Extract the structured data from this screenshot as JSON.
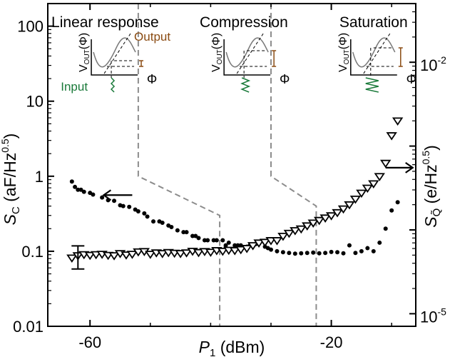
{
  "chart_data": {
    "type": "scatter",
    "xlabel": "P",
    "xlabel_sub": "1",
    "xlabel_unit": "(dBm)",
    "ylabel_left": "S",
    "ylabel_left_sub": "C",
    "ylabel_left_unit": "(aF/Hz",
    "ylabel_left_exp": "0.5",
    "ylabel_right": "S",
    "ylabel_right_sub": "Q̃",
    "ylabel_right_unit": "(e/Hz",
    "ylabel_right_exp": "0.5",
    "xlim": [
      -67,
      -6
    ],
    "ylim_left": [
      0.01,
      200
    ],
    "left_scale": "log",
    "ylim_right_exp": [
      -5.15,
      -1.3
    ],
    "right_scale": "log",
    "x_ticks": [
      -60,
      -20
    ],
    "x_minor_ticks": [
      -50,
      -40,
      -30,
      -10
    ],
    "y_left_ticks": [
      {
        "value": 100,
        "label": "100"
      },
      {
        "value": 10,
        "label": "10"
      },
      {
        "value": 1,
        "label": "1"
      },
      {
        "value": 0.1,
        "label": "0.1"
      },
      {
        "value": 0.01,
        "label": "0.01"
      }
    ],
    "y_right_ticks": [
      {
        "exp": -2,
        "base": "10",
        "sup": "-2"
      },
      {
        "exp": -5,
        "base": "10",
        "sup": "-5"
      }
    ],
    "region_labels": [
      "Linear response",
      "Compression",
      "Saturation"
    ],
    "inset_labels": {
      "output": "Output",
      "input": "Input",
      "axis_y": "V",
      "axis_y_sub": "OUT",
      "axis_y_arg": "(Φ)",
      "axis_x": "Φ"
    },
    "boundary_1": [
      [
        -52,
        200
      ],
      [
        -52,
        1.0
      ],
      [
        -38.5,
        0.3
      ],
      [
        -38.5,
        0.01
      ]
    ],
    "boundary_2": [
      [
        -30,
        200
      ],
      [
        -30,
        1.0
      ],
      [
        -22.5,
        0.4
      ],
      [
        -22.5,
        0.01
      ]
    ],
    "series": [
      {
        "marker": "dot",
        "axis": "left",
        "points": [
          [
            -63,
            0.85
          ],
          [
            -62.5,
            0.72
          ],
          [
            -62,
            0.66
          ],
          [
            -61.5,
            0.66
          ],
          [
            -61,
            0.62
          ],
          [
            -60,
            0.6
          ],
          [
            -59.5,
            0.57
          ],
          [
            -58,
            0.52
          ],
          [
            -57,
            0.48
          ],
          [
            -56,
            0.47
          ],
          [
            -55,
            0.41
          ],
          [
            -54.5,
            0.4
          ],
          [
            -53.5,
            0.39
          ],
          [
            -52.5,
            0.36
          ],
          [
            -52,
            0.34
          ],
          [
            -51,
            0.32
          ],
          [
            -50.5,
            0.29
          ],
          [
            -49.5,
            0.25
          ],
          [
            -48.5,
            0.25
          ],
          [
            -48,
            0.24
          ],
          [
            -47,
            0.22
          ],
          [
            -46.5,
            0.21
          ],
          [
            -45.5,
            0.19
          ],
          [
            -44.5,
            0.18
          ],
          [
            -44,
            0.18
          ],
          [
            -43,
            0.16
          ],
          [
            -42.5,
            0.16
          ],
          [
            -42,
            0.15
          ],
          [
            -41,
            0.14
          ],
          [
            -40.5,
            0.14
          ],
          [
            -39.5,
            0.14
          ],
          [
            -39,
            0.14
          ],
          [
            -38,
            0.14
          ],
          [
            -37.5,
            0.12
          ],
          [
            -37,
            0.13
          ],
          [
            -36,
            0.12
          ],
          [
            -35.5,
            0.12
          ],
          [
            -35,
            0.12
          ],
          [
            -34,
            0.115
          ],
          [
            -33.5,
            0.12
          ],
          [
            -33,
            0.12
          ],
          [
            -32.5,
            0.125
          ],
          [
            -31,
            0.115
          ],
          [
            -30.5,
            0.11
          ],
          [
            -30,
            0.105
          ],
          [
            -29,
            0.1
          ],
          [
            -28,
            0.097
          ],
          [
            -27,
            0.095
          ],
          [
            -26,
            0.093
          ],
          [
            -25,
            0.094
          ],
          [
            -24,
            0.095
          ],
          [
            -23,
            0.096
          ],
          [
            -22,
            0.094
          ],
          [
            -21,
            0.095
          ],
          [
            -20,
            0.098
          ],
          [
            -19,
            0.097
          ],
          [
            -18,
            0.094
          ],
          [
            -17,
            0.12
          ],
          [
            -16,
            0.095
          ],
          [
            -15,
            0.1
          ],
          [
            -14,
            0.11
          ],
          [
            -13,
            0.1
          ],
          [
            -12,
            0.13
          ],
          [
            -11,
            0.2
          ],
          [
            -10,
            0.35
          ],
          [
            -9,
            0.45
          ]
        ]
      },
      {
        "marker": "triangle-down",
        "axis": "left",
        "points": [
          [
            -63,
            0.082
          ],
          [
            -62,
            0.088
          ],
          [
            -61,
            0.091
          ],
          [
            -60,
            0.089
          ],
          [
            -59,
            0.091
          ],
          [
            -58,
            0.092
          ],
          [
            -57,
            0.089
          ],
          [
            -56,
            0.088
          ],
          [
            -55,
            0.094
          ],
          [
            -54,
            0.09
          ],
          [
            -53,
            0.092
          ],
          [
            -52,
            0.099
          ],
          [
            -51,
            0.1
          ],
          [
            -50,
            0.092
          ],
          [
            -49,
            0.096
          ],
          [
            -48,
            0.094
          ],
          [
            -47,
            0.097
          ],
          [
            -46,
            0.095
          ],
          [
            -45,
            0.094
          ],
          [
            -44,
            0.096
          ],
          [
            -43,
            0.101
          ],
          [
            -42,
            0.097
          ],
          [
            -41,
            0.1
          ],
          [
            -40,
            0.098
          ],
          [
            -39,
            0.103
          ],
          [
            -38,
            0.101
          ],
          [
            -37,
            0.104
          ],
          [
            -36,
            0.103
          ],
          [
            -35,
            0.106
          ],
          [
            -34,
            0.11
          ],
          [
            -33,
            0.12
          ],
          [
            -32,
            0.13
          ],
          [
            -31,
            0.133
          ],
          [
            -30,
            0.14
          ],
          [
            -29,
            0.14
          ],
          [
            -28,
            0.16
          ],
          [
            -27,
            0.175
          ],
          [
            -26,
            0.19
          ],
          [
            -25,
            0.2
          ],
          [
            -24,
            0.22
          ],
          [
            -23,
            0.24
          ],
          [
            -22,
            0.26
          ],
          [
            -21,
            0.28
          ],
          [
            -20,
            0.3
          ],
          [
            -19,
            0.33
          ],
          [
            -18,
            0.37
          ],
          [
            -17,
            0.42
          ],
          [
            -16,
            0.5
          ],
          [
            -15,
            0.6
          ],
          [
            -14,
            0.7
          ],
          [
            -13,
            0.8
          ],
          [
            -12,
            1.0
          ],
          [
            -11,
            1.5
          ],
          [
            -10,
            3.5
          ],
          [
            -9,
            5.5
          ]
        ]
      }
    ],
    "error_bar": {
      "x": -62,
      "y": 0.085,
      "low": 0.058,
      "high": 0.118
    }
  }
}
